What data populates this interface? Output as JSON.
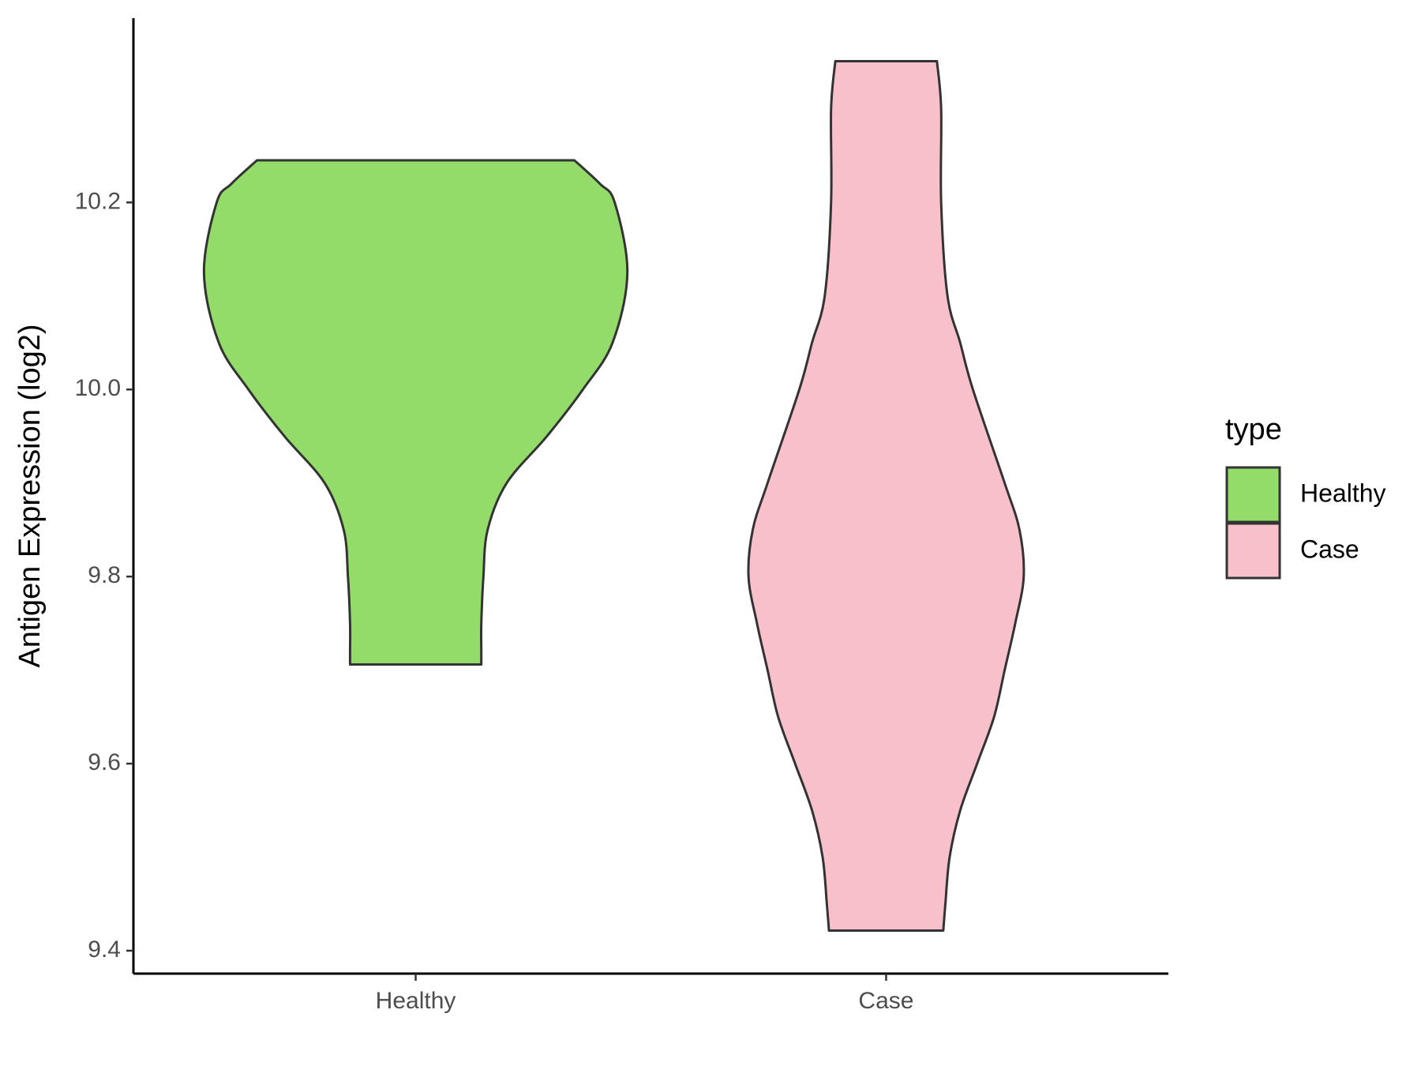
{
  "chart_data": {
    "type": "violin",
    "ylabel": "Antigen Expression (log2)",
    "categories": [
      "Healthy",
      "Case"
    ],
    "series": [
      {
        "name": "Healthy",
        "color": "#93dc6a",
        "values": [
          9.706,
          9.72,
          9.75,
          9.8,
          9.85,
          9.9,
          9.95,
          10.0,
          10.05,
          10.125,
          10.2,
          10.22,
          10.245
        ],
        "density": [
          0.31,
          0.31,
          0.31,
          0.32,
          0.34,
          0.43,
          0.62,
          0.79,
          0.93,
          1.0,
          0.94,
          0.87,
          0.75
        ]
      },
      {
        "name": "Case",
        "color": "#f7c0cb",
        "values": [
          9.4215,
          9.45,
          9.5,
          9.55,
          9.6,
          9.65,
          9.7,
          9.75,
          9.8,
          9.85,
          9.9,
          10.0,
          10.05,
          10.1,
          10.2,
          10.3,
          10.351
        ],
        "density": [
          0.27,
          0.28,
          0.3,
          0.35,
          0.43,
          0.51,
          0.56,
          0.61,
          0.65,
          0.63,
          0.56,
          0.41,
          0.35,
          0.29,
          0.26,
          0.26,
          0.24
        ]
      }
    ],
    "ylim": [
      9.3755,
      10.397
    ],
    "yticks": [
      9.4,
      9.6,
      9.8,
      {
        "value": 10,
        "label": "10.0"
      },
      10.2
    ],
    "legend_title": "type",
    "legend": "right"
  }
}
